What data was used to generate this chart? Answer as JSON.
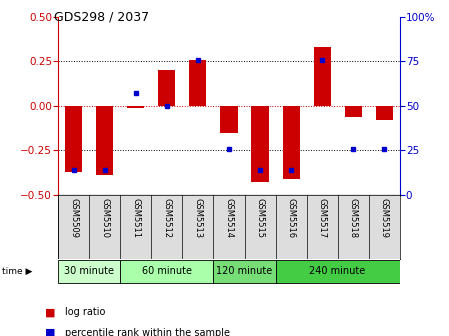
{
  "title": "GDS298 / 2037",
  "samples": [
    "GSM5509",
    "GSM5510",
    "GSM5511",
    "GSM5512",
    "GSM5513",
    "GSM5514",
    "GSM5515",
    "GSM5516",
    "GSM5517",
    "GSM5518",
    "GSM5519"
  ],
  "log_ratio": [
    -0.37,
    -0.39,
    -0.01,
    0.2,
    0.26,
    -0.15,
    -0.43,
    -0.41,
    0.33,
    -0.06,
    -0.08
  ],
  "percentile": [
    14,
    14,
    57,
    50,
    76,
    26,
    14,
    14,
    76,
    26,
    26
  ],
  "groups": [
    {
      "label": "30 minute",
      "start": 0,
      "end": 2,
      "color": "#ccffcc"
    },
    {
      "label": "60 minute",
      "start": 2,
      "end": 5,
      "color": "#aaffaa"
    },
    {
      "label": "120 minute",
      "start": 5,
      "end": 7,
      "color": "#77dd77"
    },
    {
      "label": "240 minute",
      "start": 7,
      "end": 11,
      "color": "#44cc44"
    }
  ],
  "ylim_left": [
    -0.5,
    0.5
  ],
  "ylim_right": [
    0,
    100
  ],
  "yticks_left": [
    -0.5,
    -0.25,
    0,
    0.25,
    0.5
  ],
  "yticks_right": [
    0,
    25,
    50,
    75,
    100
  ],
  "bar_color": "#cc0000",
  "percentile_color": "#0000cc",
  "background_color": "#ffffff",
  "zero_line_color": "#cc0000",
  "bar_width": 0.55
}
